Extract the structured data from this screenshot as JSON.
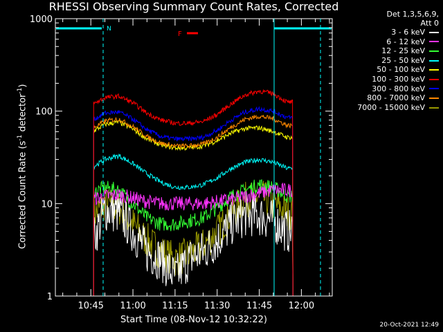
{
  "title": "RHESSI Observing Summary Count Rates, Corrected",
  "ylabel_main": "Corrected Count Rate (s",
  "ylabel_sup1": "-1",
  "ylabel_mid": " detector",
  "ylabel_sup2": "-1",
  "ylabel_end": ")",
  "xlabel": "Start Time (08-Nov-12 10:32:22)",
  "timestamp": "20-Oct-2021 12:49",
  "legend_header": [
    "Det 1,3,5,6,9,",
    "Att 0"
  ],
  "flags": {
    "n_label": "N",
    "f_label": "F"
  },
  "chart_data": {
    "type": "line",
    "y_scale": "log",
    "ylim": [
      1,
      1000
    ],
    "y_ticks": [
      1,
      10,
      100,
      1000
    ],
    "y_tick_labels": [
      "1",
      "10",
      "100",
      "1000"
    ],
    "x_ticks": [
      "10:45",
      "11:00",
      "11:15",
      "11:30",
      "11:45",
      "12:00"
    ],
    "grid": false,
    "legend_position": "right",
    "series": [
      {
        "name": "3 - 6 keV",
        "color": "#ffffff",
        "x": [
          "10:45",
          "10:50",
          "10:55",
          "11:00",
          "11:05",
          "11:10",
          "11:15",
          "11:20",
          "11:25",
          "11:30",
          "11:35",
          "11:40",
          "11:45",
          "11:50",
          "11:55"
        ],
        "values": [
          3.5,
          8.5,
          8,
          5,
          3,
          2.5,
          1.6,
          2.5,
          3,
          4,
          6,
          7.5,
          7.5,
          6.5,
          5
        ]
      },
      {
        "name": "6 - 12 keV",
        "color": "#ff33ff",
        "x": [
          "10:45",
          "10:50",
          "10:55",
          "11:00",
          "11:05",
          "11:10",
          "11:15",
          "11:20",
          "11:25",
          "11:30",
          "11:35",
          "11:40",
          "11:45",
          "11:50",
          "11:55"
        ],
        "values": [
          11,
          12,
          12.5,
          11.5,
          10.5,
          10,
          10,
          10,
          10,
          10.5,
          11,
          12,
          13,
          14,
          14
        ]
      },
      {
        "name": "12 - 25 keV",
        "color": "#33ff33",
        "x": [
          "10:45",
          "10:50",
          "10:55",
          "11:00",
          "11:05",
          "11:10",
          "11:15",
          "11:20",
          "11:25",
          "11:30",
          "11:35",
          "11:40",
          "11:45",
          "11:50",
          "11:55"
        ],
        "values": [
          13,
          15,
          14,
          10,
          7,
          6,
          6,
          6.5,
          7,
          9,
          12,
          14,
          16,
          15,
          12
        ]
      },
      {
        "name": "25 - 50 keV",
        "color": "#00ffff",
        "x": [
          "10:45",
          "10:50",
          "10:55",
          "11:00",
          "11:05",
          "11:10",
          "11:15",
          "11:20",
          "11:25",
          "11:30",
          "11:35",
          "11:40",
          "11:45",
          "11:50",
          "11:55"
        ],
        "values": [
          24,
          30,
          33,
          27,
          21,
          17,
          15,
          15,
          16,
          19,
          24,
          28,
          30,
          28,
          24
        ]
      },
      {
        "name": "50 - 100 keV",
        "color": "#ffff00",
        "x": [
          "10:45",
          "10:50",
          "10:55",
          "11:00",
          "11:05",
          "11:10",
          "11:15",
          "11:20",
          "11:25",
          "11:30",
          "11:35",
          "11:40",
          "11:45",
          "11:50",
          "11:55"
        ],
        "values": [
          58,
          72,
          76,
          64,
          50,
          43,
          40,
          40,
          42,
          48,
          58,
          65,
          66,
          60,
          52
        ]
      },
      {
        "name": "100 - 300 keV",
        "color": "#ff0000",
        "x": [
          "10:45",
          "10:50",
          "10:55",
          "11:00",
          "11:05",
          "11:10",
          "11:15",
          "11:20",
          "11:25",
          "11:30",
          "11:35",
          "11:40",
          "11:45",
          "11:50",
          "11:55"
        ],
        "values": [
          115,
          140,
          145,
          123,
          95,
          80,
          74,
          74,
          77,
          92,
          120,
          150,
          165,
          155,
          125
        ]
      },
      {
        "name": "300 - 800 keV",
        "color": "#0000ff",
        "x": [
          "10:45",
          "10:50",
          "10:55",
          "11:00",
          "11:05",
          "11:10",
          "11:15",
          "11:20",
          "11:25",
          "11:30",
          "11:35",
          "11:40",
          "11:45",
          "11:50",
          "11:55"
        ],
        "values": [
          78,
          95,
          98,
          82,
          63,
          53,
          50,
          50,
          52,
          62,
          80,
          98,
          106,
          100,
          85
        ]
      },
      {
        "name": "800 - 7000 keV",
        "color": "#ff8800",
        "x": [
          "10:45",
          "10:50",
          "10:55",
          "11:00",
          "11:05",
          "11:10",
          "11:15",
          "11:20",
          "11:25",
          "11:30",
          "11:35",
          "11:40",
          "11:45",
          "11:50",
          "11:55"
        ],
        "values": [
          63,
          78,
          82,
          68,
          53,
          45,
          42,
          42,
          44,
          52,
          67,
          82,
          88,
          83,
          70
        ]
      },
      {
        "name": "7000 - 15000 keV",
        "color": "#999900",
        "x": [
          "10:45",
          "10:50",
          "10:55",
          "11:00",
          "11:05",
          "11:10",
          "11:15",
          "11:20",
          "11:25",
          "11:30",
          "11:35",
          "11:40",
          "11:45",
          "11:50",
          "11:55"
        ],
        "values": [
          7,
          10,
          9,
          6,
          4,
          3,
          2.5,
          2.8,
          3.5,
          5,
          8,
          11,
          12,
          10,
          8
        ]
      }
    ]
  }
}
